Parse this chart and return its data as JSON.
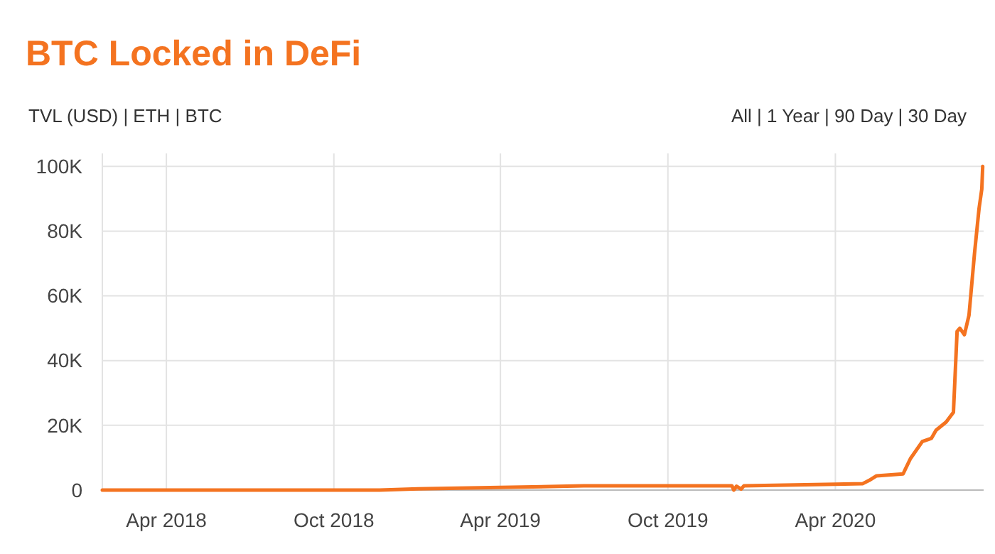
{
  "chart_data": {
    "type": "line",
    "title": "BTC Locked in DeFi",
    "annotations": [
      "TVL (USD) | ETH | BTC",
      "All | 1 Year | 90 Day | 30 Day"
    ],
    "x": [
      "2018-01-21",
      "2018-06-01",
      "2018-11-20",
      "2019-01-01",
      "2019-04-01",
      "2019-07-01",
      "2019-10-01",
      "2019-12-10",
      "2019-12-12",
      "2019-12-15",
      "2019-12-20",
      "2019-12-23",
      "2020-04-01",
      "2020-05-01",
      "2020-05-08",
      "2020-05-16",
      "2020-06-14",
      "2020-06-22",
      "2020-07-05",
      "2020-07-15",
      "2020-07-20",
      "2020-07-31",
      "2020-08-08",
      "2020-08-12",
      "2020-08-15",
      "2020-08-20",
      "2020-08-25",
      "2020-08-31",
      "2020-09-05",
      "2020-09-08",
      "2020-09-09"
    ],
    "series": [
      {
        "color": "#f47320",
        "values": [
          0,
          0,
          0,
          400,
          800,
          1300,
          1300,
          1300,
          0,
          1200,
          300,
          1300,
          1800,
          2000,
          3000,
          4400,
          5000,
          9700,
          15000,
          16000,
          18500,
          21000,
          24000,
          49000,
          50000,
          48000,
          54000,
          73000,
          87000,
          93000,
          100000
        ]
      }
    ],
    "xlim": [
      "2018-01-21",
      "2020-09-10"
    ],
    "xticks": [
      {
        "value": "2018-04-01",
        "label": "Apr 2018"
      },
      {
        "value": "2018-10-01",
        "label": "Oct 2018"
      },
      {
        "value": "2019-04-01",
        "label": "Apr 2019"
      },
      {
        "value": "2019-10-01",
        "label": "Oct 2019"
      },
      {
        "value": "2020-04-01",
        "label": "Apr 2020"
      }
    ],
    "ylim": [
      0,
      104000
    ],
    "yticks": [
      {
        "value": 0,
        "label": "0"
      },
      {
        "value": 20000,
        "label": "20K"
      },
      {
        "value": 40000,
        "label": "40K"
      },
      {
        "value": 60000,
        "label": "60K"
      },
      {
        "value": 80000,
        "label": "80K"
      },
      {
        "value": 100000,
        "label": "100K"
      }
    ],
    "grid": true,
    "marker": "none",
    "line_style": "solid"
  }
}
